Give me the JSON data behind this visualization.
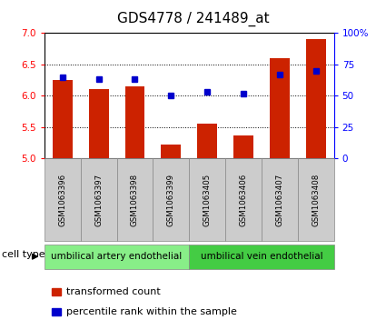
{
  "title": "GDS4778 / 241489_at",
  "samples": [
    "GSM1063396",
    "GSM1063397",
    "GSM1063398",
    "GSM1063399",
    "GSM1063405",
    "GSM1063406",
    "GSM1063407",
    "GSM1063408"
  ],
  "transformed_count": [
    6.25,
    6.1,
    6.15,
    5.22,
    5.55,
    5.37,
    6.6,
    6.9
  ],
  "percentile_rank": [
    65,
    63,
    63,
    50,
    53,
    52,
    67,
    70
  ],
  "ylim_left": [
    5.0,
    7.0
  ],
  "ylim_right": [
    0,
    100
  ],
  "yticks_left": [
    5.0,
    5.5,
    6.0,
    6.5,
    7.0
  ],
  "yticks_right": [
    0,
    25,
    50,
    75,
    100
  ],
  "bar_color": "#cc2200",
  "dot_color": "#0000cc",
  "bar_bottom": 5.0,
  "cell_type_groups": [
    {
      "label": "umbilical artery endothelial",
      "indices": [
        0,
        1,
        2,
        3
      ],
      "color": "#88ee88"
    },
    {
      "label": "umbilical vein endothelial",
      "indices": [
        4,
        5,
        6,
        7
      ],
      "color": "#44cc44"
    }
  ],
  "cell_type_label": "cell type",
  "legend_bar_label": "transformed count",
  "legend_dot_label": "percentile rank within the sample",
  "sample_box_color": "#cccccc",
  "title_fontsize": 11
}
